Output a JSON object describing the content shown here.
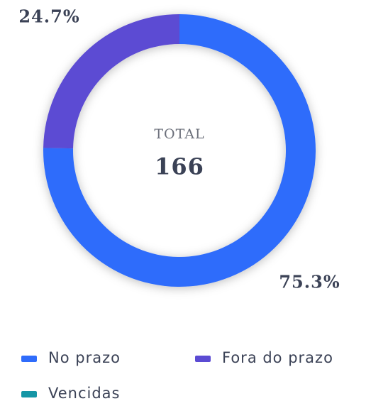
{
  "chart_data": {
    "type": "donut",
    "categories": [
      "No prazo",
      "Fora do prazo",
      "Vencidas"
    ],
    "values": [
      75.3,
      24.7,
      0
    ],
    "value_labels": [
      "75.3%",
      "24.7%",
      null
    ],
    "colors": [
      "#2f6cfb",
      "#5b4bd3",
      "#1596a6"
    ],
    "center_label": "TOTAL",
    "total": 166,
    "legend": "bottom"
  }
}
